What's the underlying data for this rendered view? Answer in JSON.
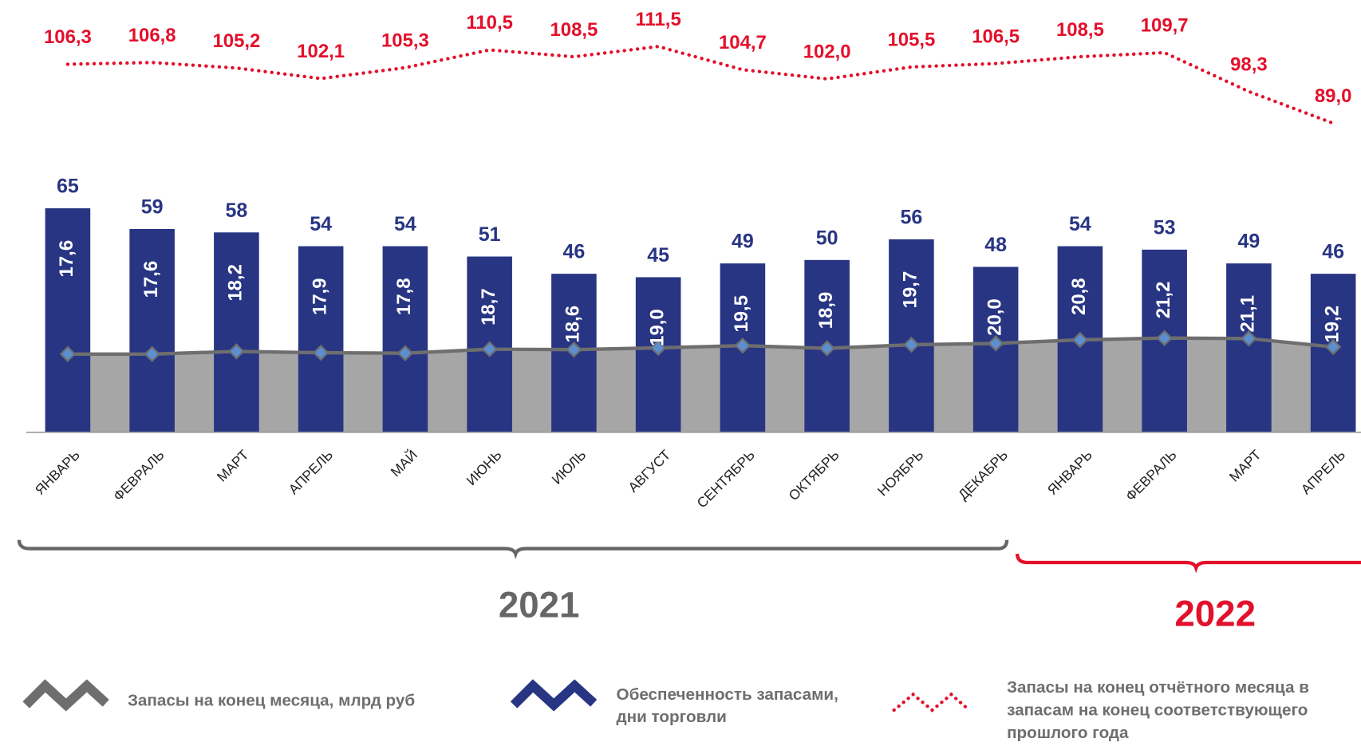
{
  "chart_data": {
    "type": "bar-line",
    "categories": [
      "ЯНВАРЬ",
      "ФЕВРАЛЬ",
      "МАРТ",
      "АПРЕЛЬ",
      "МАЙ",
      "ИЮНЬ",
      "ИЮЛЬ",
      "АВГУСТ",
      "СЕНТЯБРЬ",
      "ОКТЯБРЬ",
      "НОЯБРЬ",
      "ДЕКАБРЬ",
      "ЯНВАРЬ",
      "ФЕВРАЛЬ",
      "МАРТ",
      "АПРЕЛЬ"
    ],
    "groups": [
      {
        "label": "2021",
        "color": "#666666"
      },
      {
        "label": "2022",
        "color": "#e3102b"
      }
    ],
    "series": [
      {
        "name": "Запасы на конец месяца, млрд руб",
        "color": "#a6a6a6",
        "line_color": "#6e6e6e",
        "marker_color": "#5b8fd0",
        "values": [
          17.6,
          17.6,
          18.2,
          17.9,
          17.8,
          18.7,
          18.6,
          19.0,
          19.5,
          18.9,
          19.7,
          20.0,
          20.8,
          21.2,
          21.1,
          19.2
        ],
        "value_labels": [
          "17,6",
          "17,6",
          "18,2",
          "17,9",
          "17,8",
          "18,7",
          "18,6",
          "19,0",
          "19,5",
          "18,9",
          "19,7",
          "20,0",
          "20,8",
          "21,2",
          "21,1",
          "19,2"
        ]
      },
      {
        "name": "Обеспеченность запасами,\nдни торговли",
        "color": "#283583",
        "values": [
          65,
          59,
          58,
          54,
          54,
          51,
          46,
          45,
          49,
          50,
          56,
          48,
          54,
          53,
          49,
          46
        ]
      },
      {
        "name": "Запасы на конец отчётного месяца в\nзапасам на конец соответствующего\nпрошлого года",
        "color": "#e3102b",
        "values": [
          106.3,
          106.8,
          105.2,
          102.1,
          105.3,
          110.5,
          108.5,
          111.5,
          104.7,
          102.0,
          105.5,
          106.5,
          108.5,
          109.7,
          98.3,
          89.0
        ],
        "value_labels": [
          "106,3",
          "106,8",
          "105,2",
          "102,1",
          "105,3",
          "110,5",
          "108,5",
          "111,5",
          "104,7",
          "102,0",
          "105,5",
          "106,5",
          "108,5",
          "109,7",
          "98,3",
          "89,0"
        ]
      }
    ]
  }
}
